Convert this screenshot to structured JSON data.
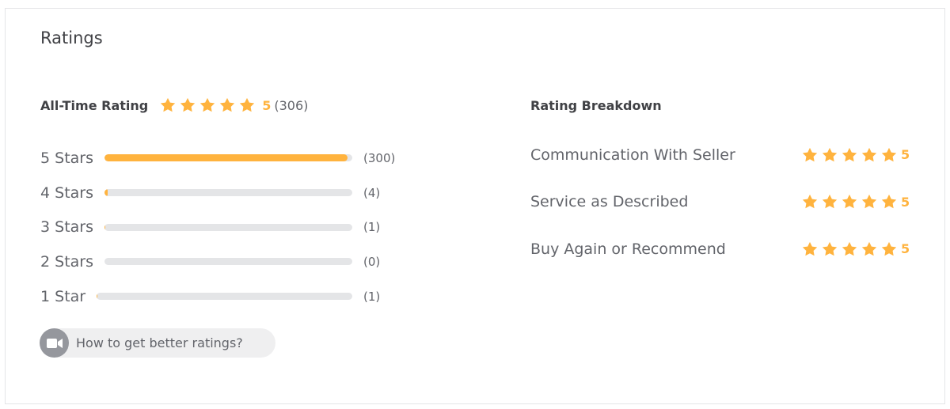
{
  "header": {
    "title": "Ratings"
  },
  "all_time": {
    "label": "All-Time Rating",
    "rating": 5,
    "count": 306,
    "count_label": "(306)",
    "rows": [
      {
        "label": "5 Stars",
        "count": 300,
        "count_label": "(300)"
      },
      {
        "label": "4 Stars",
        "count": 4,
        "count_label": "(4)"
      },
      {
        "label": "3 Stars",
        "count": 1,
        "count_label": "(1)"
      },
      {
        "label": "2 Stars",
        "count": 0,
        "count_label": "(0)"
      },
      {
        "label": "1 Star",
        "count": 1,
        "count_label": "(1)"
      }
    ]
  },
  "help_button": {
    "label": "How to get better ratings?"
  },
  "breakdown": {
    "title": "Rating Breakdown",
    "items": [
      {
        "label": "Communication With Seller",
        "rating": 5
      },
      {
        "label": "Service as Described",
        "rating": 5
      },
      {
        "label": "Buy Again or Recommend",
        "rating": 5
      }
    ]
  }
}
